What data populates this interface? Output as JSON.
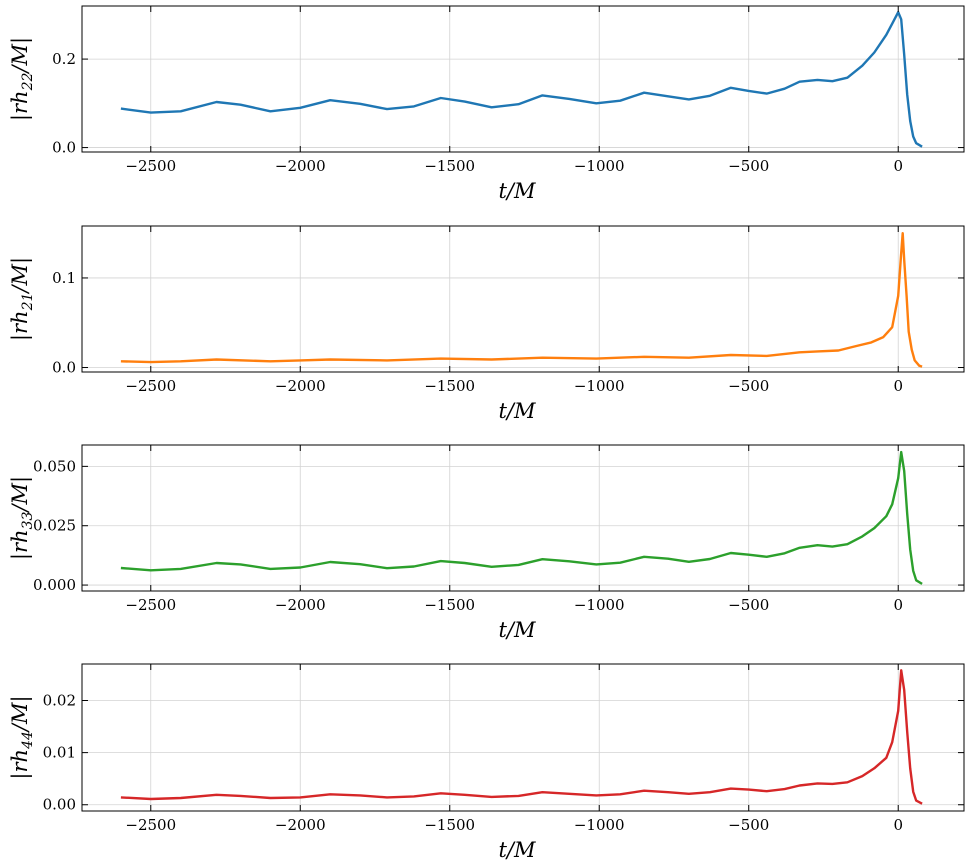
{
  "chart_data": [
    {
      "type": "line",
      "color": "#1f77b4",
      "xlabel": "t/M",
      "ylabel": "|rh22/M|",
      "xlim": [
        -2730,
        220
      ],
      "ylim": [
        -0.01,
        0.32
      ],
      "xticks": [
        -2500,
        -2000,
        -1500,
        -1000,
        -500,
        0
      ],
      "xtick_labels": [
        "−2500",
        "−2000",
        "−1500",
        "−1000",
        "−500",
        "0"
      ],
      "yticks": [
        0.0,
        0.2
      ],
      "ytick_labels": [
        "0.0",
        "0.2"
      ],
      "grid": true,
      "series": [
        {
          "x": [
            -2600,
            -2500,
            -2400,
            -2280,
            -2200,
            -2100,
            -2000,
            -1900,
            -1800,
            -1710,
            -1620,
            -1530,
            -1450,
            -1360,
            -1270,
            -1190,
            -1100,
            -1010,
            -930,
            -850,
            -770,
            -700,
            -630,
            -560,
            -500,
            -440,
            -380,
            -330,
            -270,
            -220,
            -170,
            -120,
            -80,
            -40,
            -20,
            0,
            10,
            20,
            30,
            40,
            50,
            60,
            80
          ],
          "y": [
            0.088,
            0.079,
            0.082,
            0.103,
            0.097,
            0.082,
            0.09,
            0.107,
            0.099,
            0.087,
            0.093,
            0.112,
            0.104,
            0.091,
            0.098,
            0.118,
            0.11,
            0.1,
            0.106,
            0.124,
            0.116,
            0.109,
            0.117,
            0.135,
            0.128,
            0.122,
            0.133,
            0.149,
            0.153,
            0.15,
            0.158,
            0.185,
            0.215,
            0.255,
            0.28,
            0.306,
            0.29,
            0.21,
            0.12,
            0.06,
            0.025,
            0.01,
            0.002
          ]
        }
      ]
    },
    {
      "type": "line",
      "color": "#ff7f0e",
      "xlabel": "t/M",
      "ylabel": "|rh21/M|",
      "xlim": [
        -2730,
        220
      ],
      "ylim": [
        -0.005,
        0.158
      ],
      "xticks": [
        -2500,
        -2000,
        -1500,
        -1000,
        -500,
        0
      ],
      "xtick_labels": [
        "−2500",
        "−2000",
        "−1500",
        "−1000",
        "−500",
        "0"
      ],
      "yticks": [
        0.0,
        0.1
      ],
      "ytick_labels": [
        "0.0",
        "0.1"
      ],
      "grid": true,
      "series": [
        {
          "x": [
            -2600,
            -2500,
            -2400,
            -2280,
            -2100,
            -2000,
            -1900,
            -1710,
            -1530,
            -1360,
            -1190,
            -1010,
            -850,
            -700,
            -560,
            -440,
            -330,
            -270,
            -200,
            -140,
            -90,
            -50,
            -20,
            0,
            10,
            15,
            20,
            28,
            35,
            45,
            55,
            70,
            80
          ],
          "y": [
            0.007,
            0.006,
            0.007,
            0.009,
            0.007,
            0.008,
            0.009,
            0.008,
            0.01,
            0.009,
            0.011,
            0.01,
            0.012,
            0.011,
            0.014,
            0.013,
            0.017,
            0.018,
            0.019,
            0.024,
            0.028,
            0.034,
            0.045,
            0.08,
            0.128,
            0.15,
            0.12,
            0.08,
            0.04,
            0.02,
            0.008,
            0.002,
            0.001
          ]
        }
      ]
    },
    {
      "type": "line",
      "color": "#2ca02c",
      "xlabel": "t/M",
      "ylabel": "|rh33/M|",
      "xlim": [
        -2730,
        220
      ],
      "ylim": [
        -0.0025,
        0.059
      ],
      "xticks": [
        -2500,
        -2000,
        -1500,
        -1000,
        -500,
        0
      ],
      "xtick_labels": [
        "−2500",
        "−2000",
        "−1500",
        "−1000",
        "−500",
        "0"
      ],
      "yticks": [
        0.0,
        0.025,
        0.05
      ],
      "ytick_labels": [
        "0.000",
        "0.025",
        "0.050"
      ],
      "grid": true,
      "series": [
        {
          "x": [
            -2600,
            -2500,
            -2400,
            -2280,
            -2200,
            -2100,
            -2000,
            -1900,
            -1800,
            -1710,
            -1620,
            -1530,
            -1450,
            -1360,
            -1270,
            -1190,
            -1100,
            -1010,
            -930,
            -850,
            -770,
            -700,
            -630,
            -560,
            -500,
            -440,
            -380,
            -330,
            -270,
            -220,
            -170,
            -120,
            -80,
            -40,
            -20,
            0,
            10,
            20,
            30,
            40,
            50,
            60,
            80
          ],
          "y": [
            0.0072,
            0.0062,
            0.0068,
            0.0093,
            0.0087,
            0.0068,
            0.0074,
            0.0097,
            0.0088,
            0.0071,
            0.0078,
            0.0101,
            0.0093,
            0.0077,
            0.0085,
            0.0109,
            0.01,
            0.0087,
            0.0094,
            0.0119,
            0.0111,
            0.0098,
            0.011,
            0.0135,
            0.0128,
            0.0119,
            0.0134,
            0.0157,
            0.0168,
            0.0162,
            0.0172,
            0.0205,
            0.024,
            0.029,
            0.034,
            0.045,
            0.056,
            0.048,
            0.03,
            0.015,
            0.006,
            0.002,
            0.0005
          ]
        }
      ]
    },
    {
      "type": "line",
      "color": "#d62728",
      "xlabel": "t/M",
      "ylabel": "|rh44/M|",
      "xlim": [
        -2730,
        220
      ],
      "ylim": [
        -0.0012,
        0.027
      ],
      "xticks": [
        -2500,
        -2000,
        -1500,
        -1000,
        -500,
        0
      ],
      "xtick_labels": [
        "−2500",
        "−2000",
        "−1500",
        "−1000",
        "−500",
        "0"
      ],
      "yticks": [
        0.0,
        0.01,
        0.02
      ],
      "ytick_labels": [
        "0.00",
        "0.01",
        "0.02"
      ],
      "grid": true,
      "series": [
        {
          "x": [
            -2600,
            -2500,
            -2400,
            -2280,
            -2200,
            -2100,
            -2000,
            -1900,
            -1800,
            -1710,
            -1620,
            -1530,
            -1450,
            -1360,
            -1270,
            -1190,
            -1100,
            -1010,
            -930,
            -850,
            -770,
            -700,
            -630,
            -560,
            -500,
            -440,
            -380,
            -330,
            -270,
            -220,
            -170,
            -120,
            -80,
            -40,
            -20,
            0,
            10,
            20,
            30,
            40,
            50,
            60,
            80
          ],
          "y": [
            0.0014,
            0.0011,
            0.0013,
            0.0019,
            0.0017,
            0.0013,
            0.0014,
            0.002,
            0.0018,
            0.0014,
            0.0016,
            0.0022,
            0.0019,
            0.0015,
            0.0017,
            0.0024,
            0.0021,
            0.0018,
            0.002,
            0.0027,
            0.0024,
            0.0021,
            0.0024,
            0.0031,
            0.0029,
            0.0026,
            0.003,
            0.0037,
            0.0041,
            0.004,
            0.0043,
            0.0055,
            0.007,
            0.009,
            0.012,
            0.018,
            0.0258,
            0.022,
            0.014,
            0.007,
            0.0025,
            0.0008,
            0.0002
          ]
        }
      ]
    }
  ]
}
